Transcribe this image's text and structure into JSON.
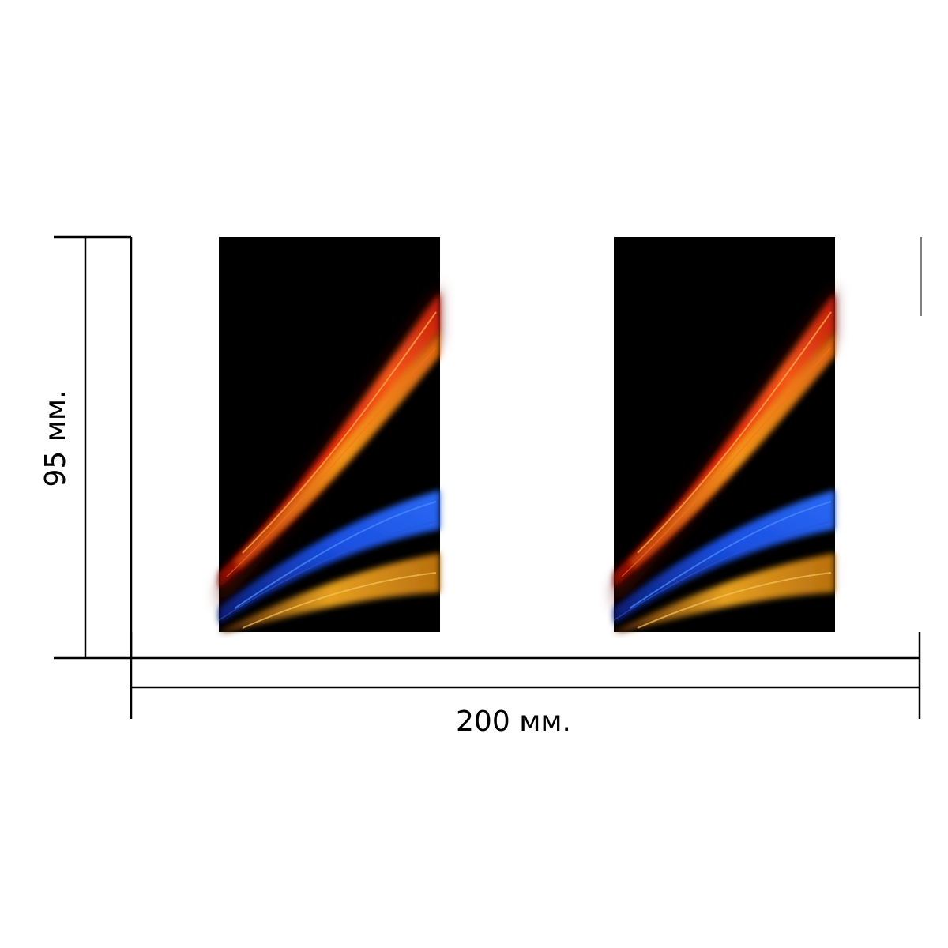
{
  "dimensions": {
    "width_label": "200 мм.",
    "height_label": "95 мм."
  },
  "panels": [
    {
      "artwork": "abstract-light-streaks"
    },
    {
      "artwork": "abstract-light-streaks"
    }
  ],
  "colors": {
    "panel_background": "#000000",
    "streak_red": "#e8240c",
    "streak_orange": "#f39a1a",
    "streak_blue": "#1a4fe0",
    "streak_gold": "#e6a020",
    "line_color": "#000000"
  }
}
